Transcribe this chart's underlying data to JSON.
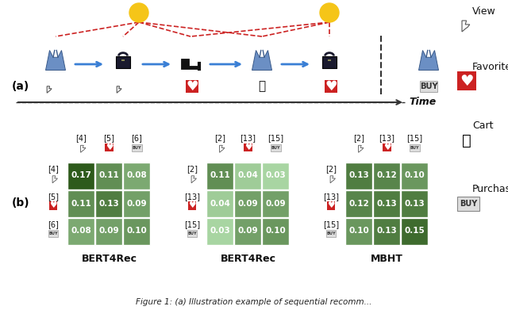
{
  "fig_width": 6.4,
  "fig_height": 3.91,
  "bg_color": "#ffffff",
  "title_text": "Figure 1: (a) Illustration example of sequential recomm...",
  "matrix1": {
    "label": "BERT4Rec",
    "col_labels": [
      "[4]",
      "[5]",
      "[6]"
    ],
    "col_icons": [
      "view",
      "favorite",
      "buy"
    ],
    "row_labels": [
      "[4]",
      "[5]",
      "[6]"
    ],
    "row_icons": [
      "view",
      "favorite",
      "buy"
    ],
    "values": [
      [
        0.17,
        0.11,
        0.08
      ],
      [
        0.11,
        0.13,
        0.09
      ],
      [
        0.08,
        0.09,
        0.1
      ]
    ]
  },
  "matrix2": {
    "label": "BERT4Rec",
    "col_labels": [
      "[2]",
      "[13]",
      "[15]"
    ],
    "col_icons": [
      "view",
      "favorite",
      "buy"
    ],
    "row_labels": [
      "[2]",
      "[13]",
      "[15]"
    ],
    "row_icons": [
      "view",
      "favorite",
      "buy"
    ],
    "values": [
      [
        0.11,
        0.04,
        0.03
      ],
      [
        0.04,
        0.09,
        0.09
      ],
      [
        0.03,
        0.09,
        0.1
      ]
    ]
  },
  "matrix3": {
    "label": "MBHT",
    "col_labels": [
      "[2]",
      "[13]",
      "[15]"
    ],
    "col_icons": [
      "view",
      "favorite",
      "buy"
    ],
    "row_labels": [
      "[2]",
      "[13]",
      "[15]"
    ],
    "row_icons": [
      "view",
      "favorite",
      "buy"
    ],
    "values": [
      [
        0.13,
        0.12,
        0.1
      ],
      [
        0.12,
        0.13,
        0.13
      ],
      [
        0.1,
        0.13,
        0.15
      ]
    ]
  },
  "legend_items": [
    "View",
    "Favorite",
    "Cart",
    "Purchase"
  ],
  "sequence_labels": [
    "(a)",
    "(b)"
  ],
  "time_arrow_label": "Time",
  "dark_green": "#2d5a1b",
  "medium_green": "#4a7c3f",
  "light_green": "#a8d5a2",
  "lighter_green": "#d4edda",
  "red_icon": "#cc2222",
  "white_text": "#ffffff",
  "dark_text": "#222222"
}
